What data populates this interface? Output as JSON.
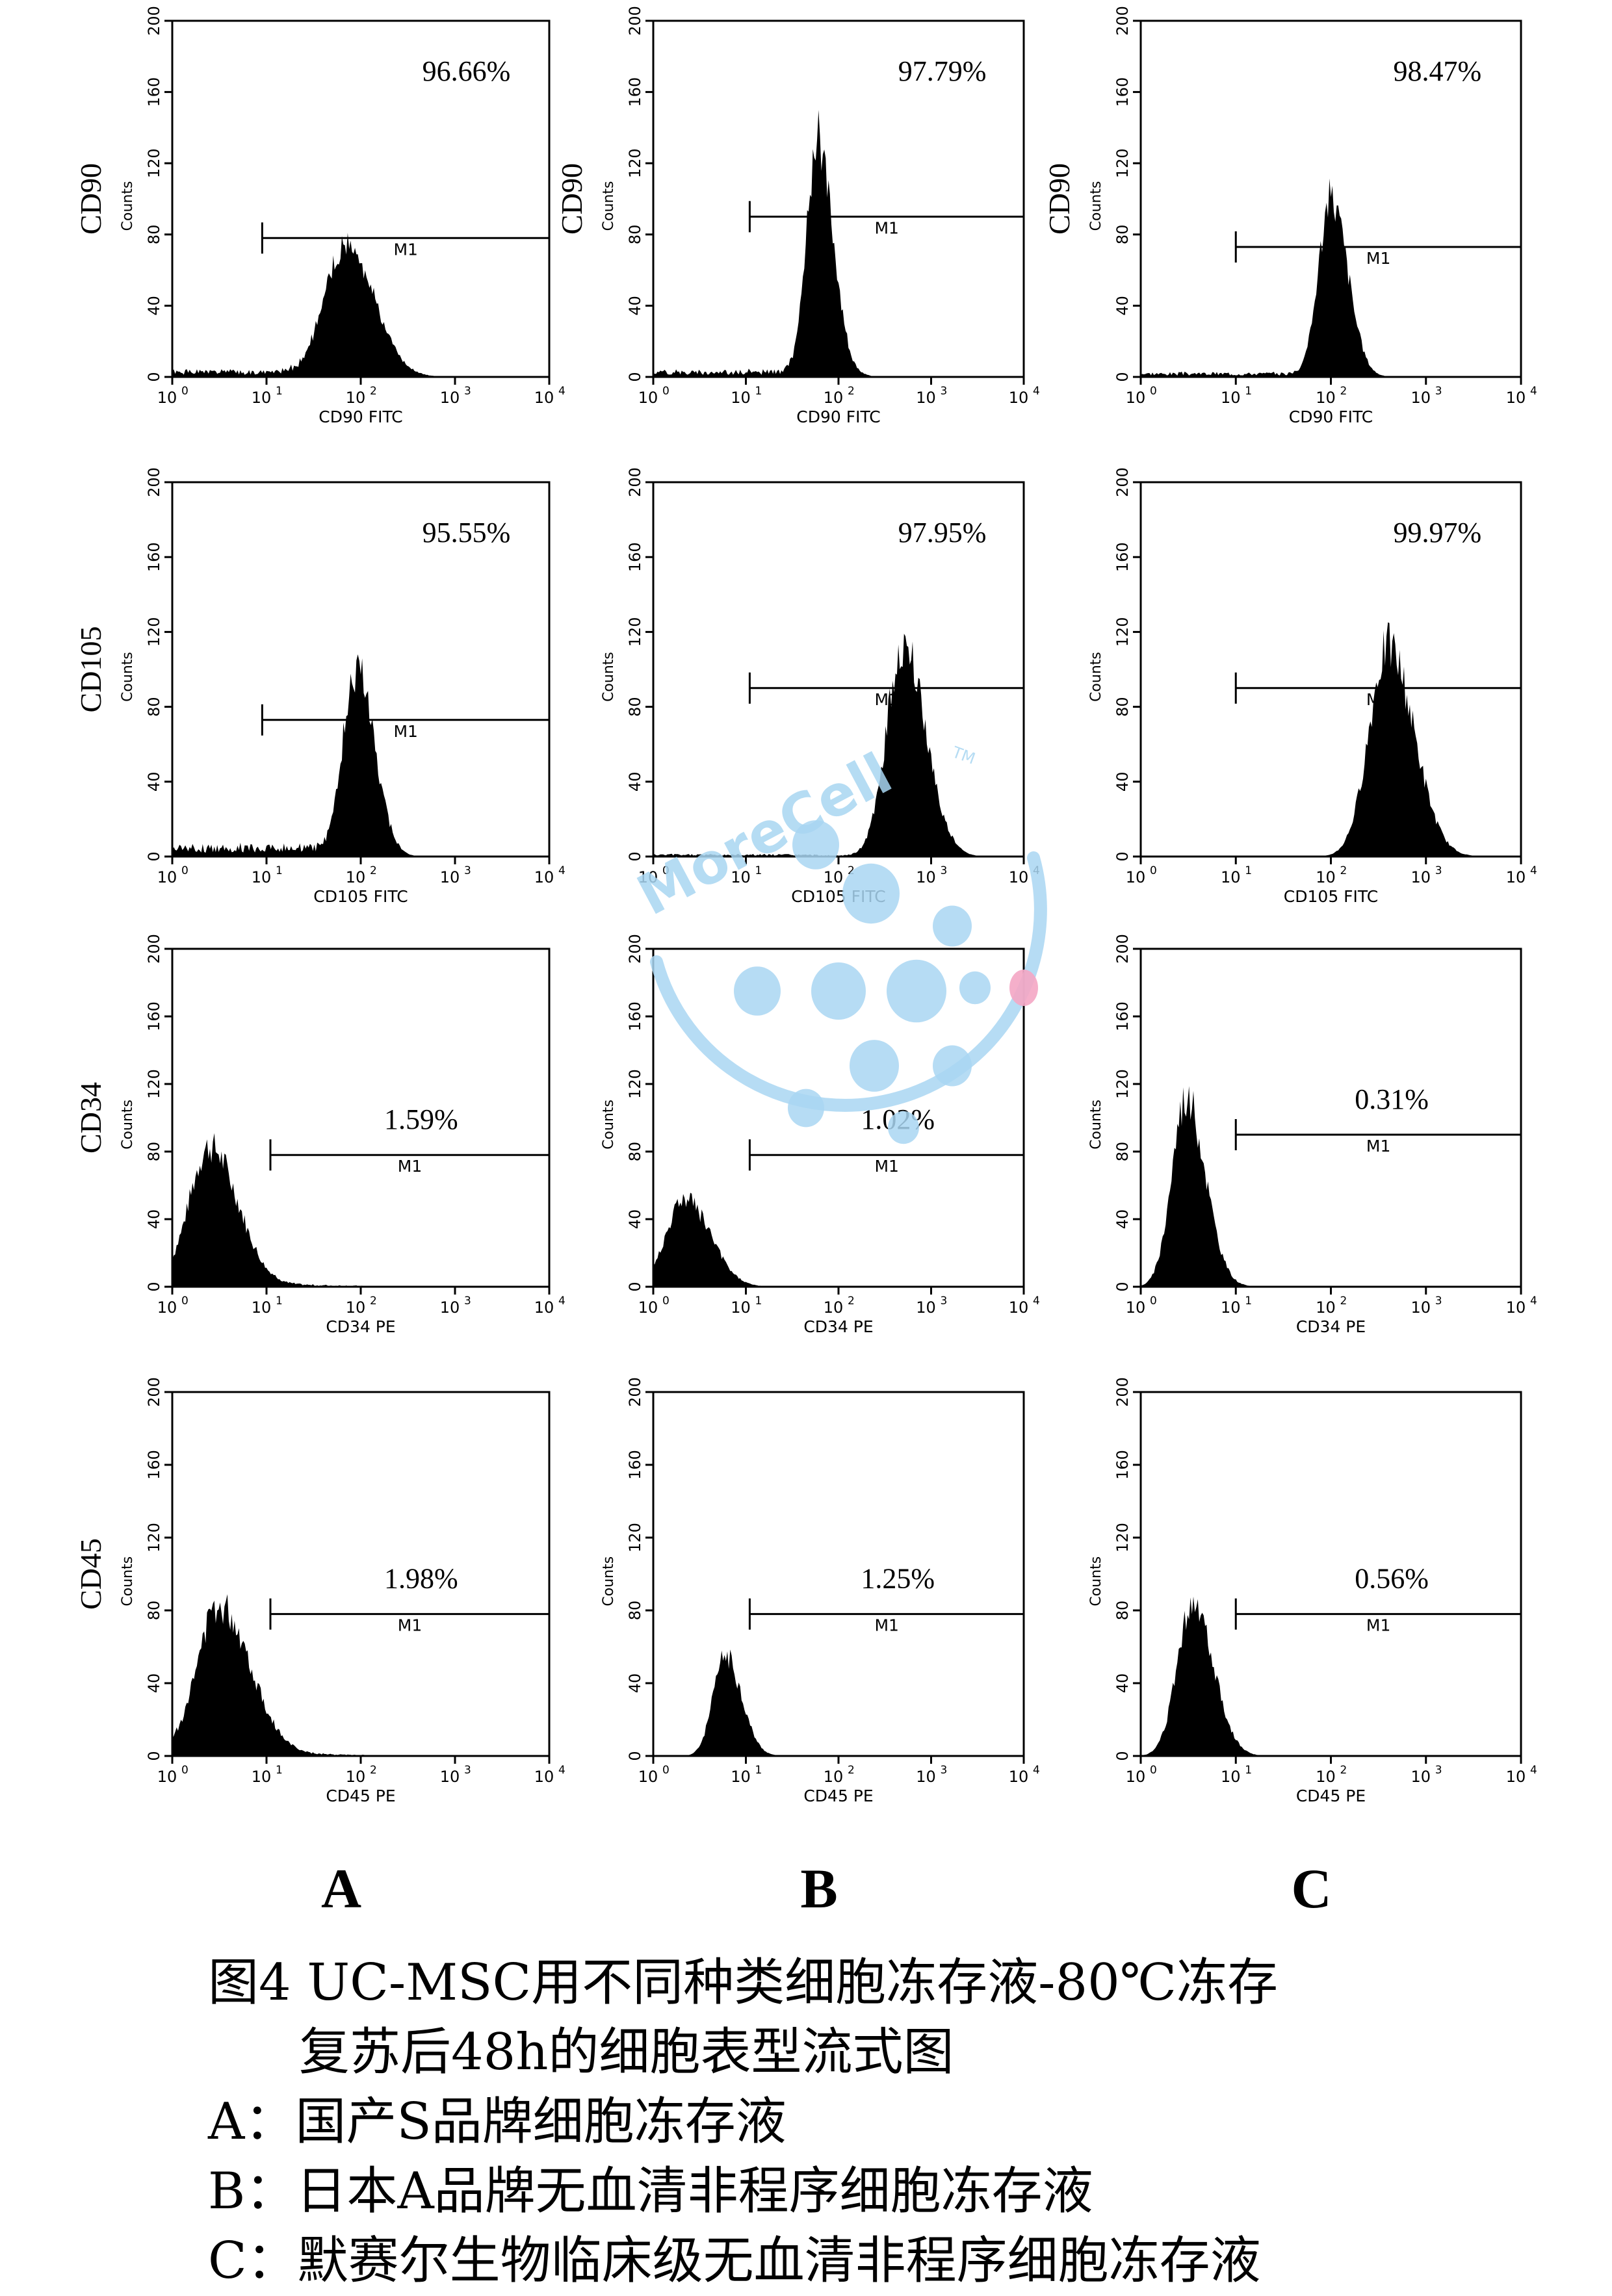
{
  "chart_data": [
    {
      "type": "histogram",
      "row_label": "CD90",
      "xlabel": "CD90 FITC",
      "ylabel": "Counts",
      "percent": "96.66%",
      "gate": "M1",
      "xscale": "log",
      "xlim": [
        1,
        10000
      ],
      "ylim": [
        0,
        200
      ],
      "yticks": [
        "0",
        "40",
        "80",
        "120",
        "160",
        "200"
      ],
      "xticks": [
        "10",
        "10",
        "10",
        "10",
        "10"
      ],
      "xtick_exponents": [
        "0",
        "1",
        "2",
        "3",
        "4"
      ],
      "gate_range": [
        9,
        10000
      ],
      "peak_x": 70,
      "peak_count": 72,
      "spread": 0.22,
      "bg_count": 3
    },
    {
      "type": "histogram",
      "row_label": "CD90",
      "xlabel": "CD90 FITC",
      "ylabel": "Counts",
      "percent": "97.79%",
      "gate": "M1",
      "xscale": "log",
      "xlim": [
        1,
        10000
      ],
      "ylim": [
        0,
        200
      ],
      "yticks": [
        "0",
        "40",
        "80",
        "120",
        "160",
        "200"
      ],
      "xticks": [
        "10",
        "10",
        "10",
        "10",
        "10"
      ],
      "xtick_exponents": [
        "0",
        "1",
        "2",
        "3",
        "4"
      ],
      "gate_range": [
        11,
        10000
      ],
      "peak_x": 60,
      "peak_count": 132,
      "spread": 0.12,
      "bg_count": 3
    },
    {
      "type": "histogram",
      "row_label": "CD90",
      "xlabel": "CD90 FITC",
      "ylabel": "Counts",
      "percent": "98.47%",
      "gate": "M1",
      "xscale": "log",
      "xlim": [
        1,
        10000
      ],
      "ylim": [
        0,
        200
      ],
      "yticks": [
        "0",
        "40",
        "80",
        "120",
        "160",
        "200"
      ],
      "xticks": [
        "10",
        "10",
        "10",
        "10",
        "10"
      ],
      "xtick_exponents": [
        "0",
        "1",
        "2",
        "3",
        "4"
      ],
      "gate_range": [
        10,
        10000
      ],
      "peak_x": 100,
      "peak_count": 100,
      "spread": 0.13,
      "bg_count": 2
    },
    {
      "type": "histogram",
      "row_label": "CD105",
      "xlabel": "CD105 FITC",
      "ylabel": "Counts",
      "percent": "95.55%",
      "gate": "M1",
      "xscale": "log",
      "xlim": [
        1,
        10000
      ],
      "ylim": [
        0,
        200
      ],
      "yticks": [
        "0",
        "40",
        "80",
        "120",
        "160",
        "200"
      ],
      "xticks": [
        "10",
        "10",
        "10",
        "10",
        "10"
      ],
      "xtick_exponents": [
        "0",
        "1",
        "2",
        "3",
        "4"
      ],
      "gate_range": [
        9,
        10000
      ],
      "peak_x": 90,
      "peak_count": 98,
      "spread": 0.14,
      "bg_count": 5
    },
    {
      "type": "histogram",
      "row_label": "",
      "xlabel": "CD105 FITC",
      "ylabel": "Counts",
      "percent": "97.95%",
      "gate": "M1",
      "xscale": "log",
      "xlim": [
        1,
        10000
      ],
      "ylim": [
        0,
        200
      ],
      "yticks": [
        "0",
        "40",
        "80",
        "120",
        "160",
        "200"
      ],
      "xticks": [
        "10",
        "10",
        "10",
        "10",
        "10"
      ],
      "xtick_exponents": [
        "0",
        "1",
        "2",
        "3",
        "4"
      ],
      "gate_range": [
        11,
        10000
      ],
      "peak_x": 500,
      "peak_count": 112,
      "spread": 0.18,
      "bg_count": 1
    },
    {
      "type": "histogram",
      "row_label": "",
      "xlabel": "CD105 FITC",
      "ylabel": "Counts",
      "percent": "99.97%",
      "gate": "M1",
      "xscale": "log",
      "xlim": [
        1,
        10000
      ],
      "ylim": [
        0,
        200
      ],
      "yticks": [
        "0",
        "40",
        "80",
        "120",
        "160",
        "200"
      ],
      "xticks": [
        "10",
        "10",
        "10",
        "10",
        "10"
      ],
      "xtick_exponents": [
        "0",
        "1",
        "2",
        "3",
        "4"
      ],
      "gate_range": [
        10,
        10000
      ],
      "peak_x": 400,
      "peak_count": 112,
      "spread": 0.2,
      "bg_count": 0
    },
    {
      "type": "histogram",
      "row_label": "CD34",
      "xlabel": "CD34 PE",
      "ylabel": "Counts",
      "percent": "1.59%",
      "gate": "M1",
      "xscale": "log",
      "xlim": [
        1,
        10000
      ],
      "ylim": [
        0,
        200
      ],
      "yticks": [
        "0",
        "40",
        "80",
        "120",
        "160",
        "200"
      ],
      "xticks": [
        "10",
        "10",
        "10",
        "10",
        "10"
      ],
      "xtick_exponents": [
        "0",
        "1",
        "2",
        "3",
        "4"
      ],
      "gate_range": [
        11,
        10000
      ],
      "peak_x": 2.5,
      "peak_count": 82,
      "spread": 0.22,
      "bg_count": 1
    },
    {
      "type": "histogram",
      "row_label": "",
      "xlabel": "CD34 PE",
      "ylabel": "Counts",
      "percent": "1.02%",
      "gate": "M1",
      "xscale": "log",
      "xlim": [
        1,
        10000
      ],
      "ylim": [
        0,
        200
      ],
      "yticks": [
        "0",
        "40",
        "80",
        "120",
        "160",
        "200"
      ],
      "xticks": [
        "10",
        "10",
        "10",
        "10",
        "10"
      ],
      "xtick_exponents": [
        "0",
        "1",
        "2",
        "3",
        "4"
      ],
      "gate_range": [
        11,
        10000
      ],
      "peak_x": 2.2,
      "peak_count": 52,
      "spread": 0.2,
      "bg_count": 0
    },
    {
      "type": "histogram",
      "row_label": "",
      "xlabel": "CD34 PE",
      "ylabel": "Counts",
      "percent": "0.31%",
      "gate": "M1",
      "xscale": "log",
      "xlim": [
        1,
        10000
      ],
      "ylim": [
        0,
        200
      ],
      "yticks": [
        "0",
        "40",
        "80",
        "120",
        "160",
        "200"
      ],
      "xticks": [
        "10",
        "10",
        "10",
        "10",
        "10"
      ],
      "xtick_exponents": [
        "0",
        "1",
        "2",
        "3",
        "4"
      ],
      "gate_range": [
        10,
        10000
      ],
      "peak_x": 3,
      "peak_count": 112,
      "spread": 0.15,
      "bg_count": 0
    },
    {
      "type": "histogram",
      "row_label": "CD45",
      "xlabel": "CD45 PE",
      "ylabel": "Counts",
      "percent": "1.98%",
      "gate": "M1",
      "xscale": "log",
      "xlim": [
        1,
        10000
      ],
      "ylim": [
        0,
        200
      ],
      "yticks": [
        "0",
        "40",
        "80",
        "120",
        "160",
        "200"
      ],
      "xticks": [
        "10",
        "10",
        "10",
        "10",
        "10"
      ],
      "xtick_exponents": [
        "0",
        "1",
        "2",
        "3",
        "4"
      ],
      "gate_range": [
        11,
        10000
      ],
      "peak_x": 3.2,
      "peak_count": 82,
      "spread": 0.24,
      "bg_count": 1
    },
    {
      "type": "histogram",
      "row_label": "",
      "xlabel": "CD45 PE",
      "ylabel": "Counts",
      "percent": "1.25%",
      "gate": "M1",
      "xscale": "log",
      "xlim": [
        1,
        10000
      ],
      "ylim": [
        0,
        200
      ],
      "yticks": [
        "0",
        "40",
        "80",
        "120",
        "160",
        "200"
      ],
      "xticks": [
        "10",
        "10",
        "10",
        "10",
        "10"
      ],
      "xtick_exponents": [
        "0",
        "1",
        "2",
        "3",
        "4"
      ],
      "gate_range": [
        11,
        10000
      ],
      "peak_x": 6,
      "peak_count": 55,
      "spread": 0.13,
      "bg_count": 0
    },
    {
      "type": "histogram",
      "row_label": "",
      "xlabel": "CD45 PE",
      "ylabel": "Counts",
      "percent": "0.56%",
      "gate": "M1",
      "xscale": "log",
      "xlim": [
        1,
        10000
      ],
      "ylim": [
        0,
        200
      ],
      "yticks": [
        "0",
        "40",
        "80",
        "120",
        "160",
        "200"
      ],
      "xticks": [
        "10",
        "10",
        "10",
        "10",
        "10"
      ],
      "xtick_exponents": [
        "0",
        "1",
        "2",
        "3",
        "4"
      ],
      "gate_range": [
        10,
        10000
      ],
      "peak_x": 3.5,
      "peak_count": 85,
      "spread": 0.16,
      "bg_count": 0
    }
  ],
  "column_labels": [
    "A",
    "B",
    "C"
  ],
  "watermark": {
    "text": "MoreCell",
    "trademark": "TM",
    "color": "#a9d6f2",
    "accent": "#f4a6c4"
  },
  "caption": {
    "title_line1": "图4 UC-MSC用不同种类细胞冻存液-80℃冻存",
    "title_line2": "复苏后48h的细胞表型流式图",
    "legend_a": "A：国产S品牌细胞冻存液",
    "legend_b": "B：日本A品牌无血清非程序细胞冻存液",
    "legend_c": "C：默赛尔生物临床级无血清非程序细胞冻存液"
  },
  "colors": {
    "histogram_fill": "#000000",
    "axis": "#000000",
    "background": "#ffffff"
  }
}
